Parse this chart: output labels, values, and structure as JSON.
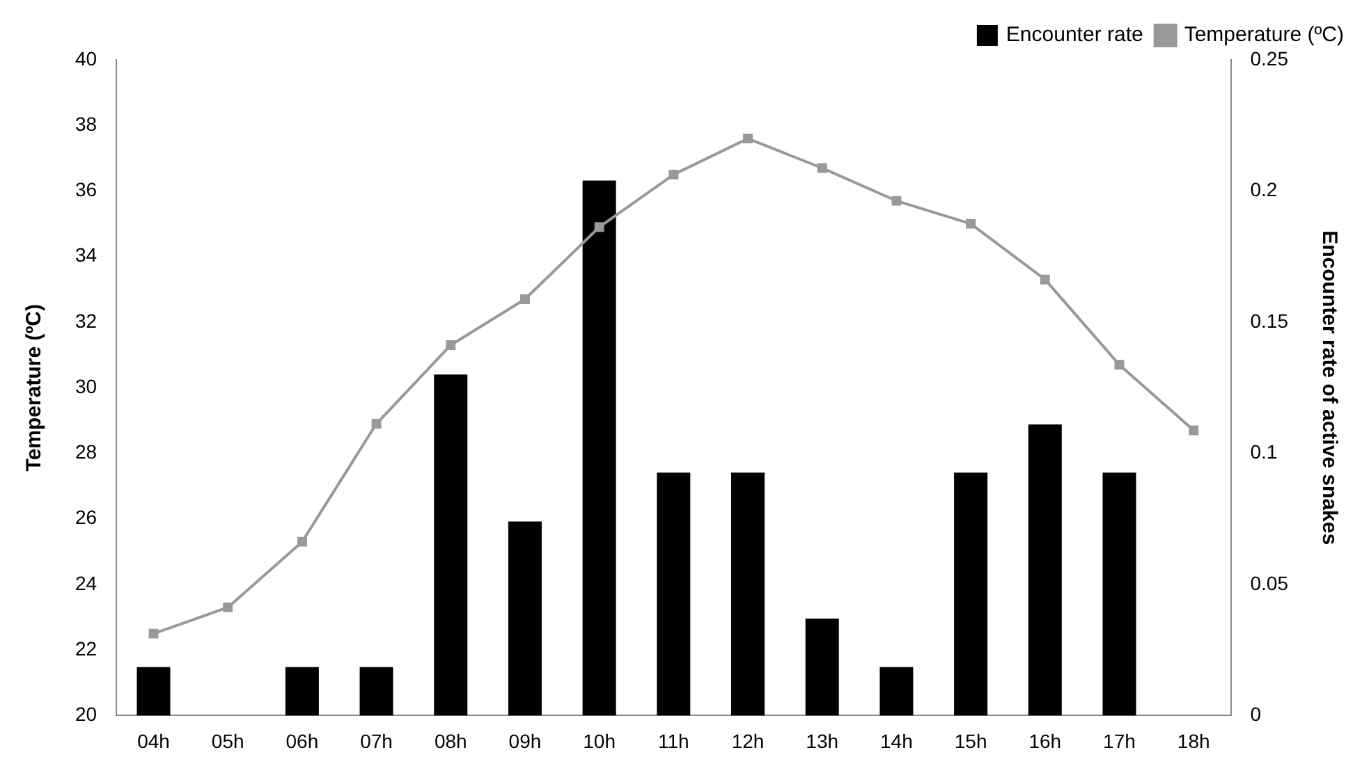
{
  "chart_data": {
    "type": "bar",
    "ylabel": "Temperature (ºC)",
    "y2label": "Encounter rate of active snakes",
    "categories": [
      "04h",
      "05h",
      "06h",
      "07h",
      "08h",
      "09h",
      "10h",
      "11h",
      "12h",
      "13h",
      "14h",
      "15h",
      "16h",
      "17h",
      "18h"
    ],
    "series": [
      {
        "name": "Encounter rate",
        "axis": "y2",
        "color": "#000000",
        "values": [
          0.0185,
          0,
          0.0185,
          0.0185,
          0.13,
          0.074,
          0.204,
          0.0926,
          0.0926,
          0.037,
          0.0185,
          0.0926,
          0.111,
          0.0926,
          0
        ]
      },
      {
        "name": "Temperature (ºC)",
        "type": "line",
        "axis": "y",
        "color": "#999999",
        "values": [
          22.5,
          23.3,
          25.3,
          28.9,
          31.3,
          32.7,
          34.9,
          36.5,
          37.6,
          36.7,
          35.7,
          35.0,
          33.3,
          30.7,
          28.7
        ]
      }
    ],
    "ylim": [
      20,
      40
    ],
    "yticks": [
      20,
      22,
      24,
      26,
      28,
      30,
      32,
      34,
      36,
      38,
      40
    ],
    "y2lim": [
      0,
      0.25
    ],
    "y2ticks": [
      0,
      0.05,
      0.1,
      0.15,
      0.2,
      0.25
    ],
    "grid": false,
    "legend": "top right",
    "marker": "square",
    "line_style": "solid"
  }
}
